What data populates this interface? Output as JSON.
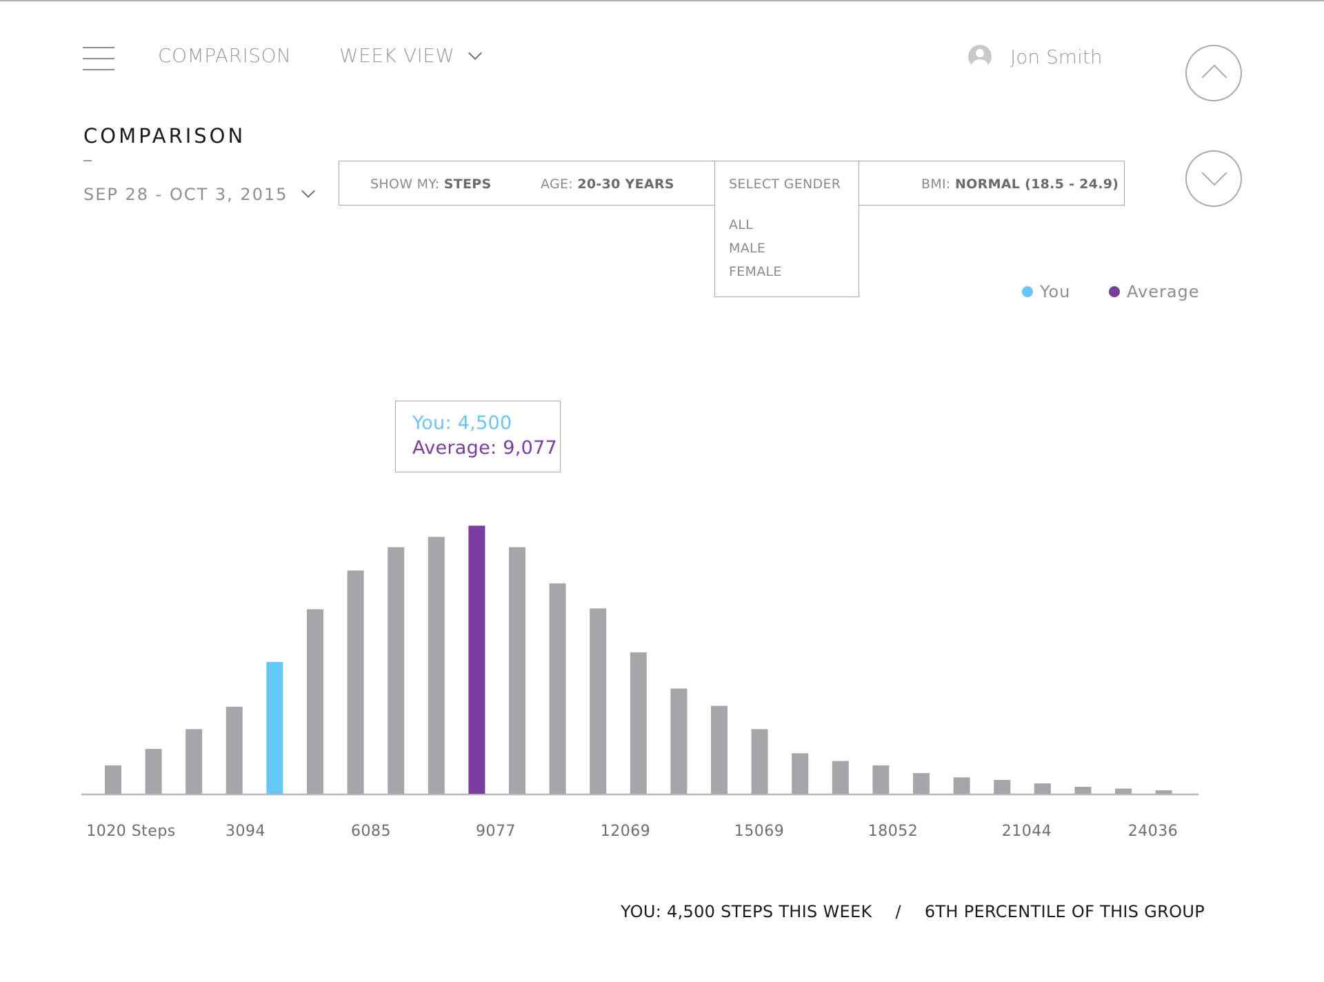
{
  "header": {
    "nav": [
      {
        "label": "COMPARISON"
      },
      {
        "label": "WEEK VIEW"
      }
    ],
    "user_name": "Jon Smith"
  },
  "title": {
    "heading": "COMPARISON",
    "dash": "–",
    "date_range": "SEP 28 - OCT 3, 2015"
  },
  "filters": {
    "show_label": "SHOW MY:",
    "show_value": "STEPS",
    "age_label": "AGE:",
    "age_value": "20-30 YEARS",
    "bmi_label": "BMI:",
    "bmi_value": "NORMAL (18.5 - 24.9)",
    "gender": {
      "title": "SELECT GENDER",
      "options": [
        "ALL",
        "MALE",
        "FEMALE"
      ]
    }
  },
  "legend": {
    "you": "You",
    "average": "Average"
  },
  "tooltip": {
    "you": "You: 4,500",
    "average": "Average: 9,077"
  },
  "colors": {
    "you": "#66c6f8",
    "average": "#7b3c9f",
    "bar": "#a6a6a9",
    "axis": "#b8b8bb",
    "tick_text": "#6e6e72"
  },
  "chart_data": {
    "type": "bar",
    "x_tick_labels": [
      "1020 Steps",
      "3094",
      "6085",
      "9077",
      "12069",
      "15069",
      "18052",
      "21044",
      "24036"
    ],
    "values": [
      33,
      52,
      75,
      101,
      153,
      214,
      259,
      286,
      298,
      311,
      286,
      244,
      215,
      164,
      122,
      102,
      75,
      47,
      38,
      33,
      24,
      19,
      16,
      12,
      8,
      6,
      4
    ],
    "you_index": 4,
    "average_index": 9,
    "series": [
      {
        "name": "You",
        "value": 4500
      },
      {
        "name": "Average",
        "value": 9077
      }
    ],
    "grid": false,
    "legend": "top-right"
  },
  "footer": {
    "summary_left": "YOU: 4,500 STEPS THIS WEEK",
    "separator": "/",
    "summary_right": "6TH PERCENTILE OF THIS GROUP"
  }
}
